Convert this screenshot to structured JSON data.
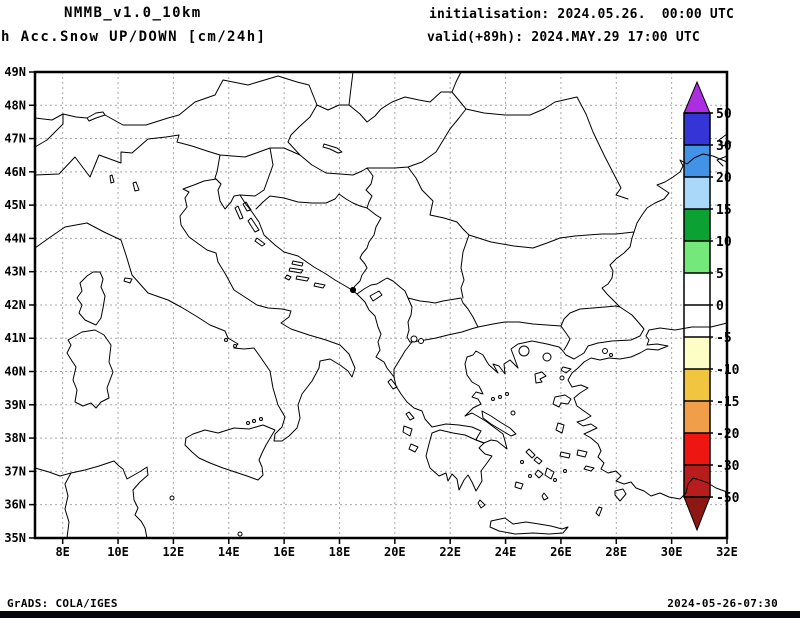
{
  "header": {
    "model_title": "NMMB_v1.0_10km",
    "product_title": "h Acc.Snow UP/DOWN [cm/24h]",
    "init_line": "initialisation: 2024.05.26.  00:00 UTC",
    "valid_line": "valid(+89h): 2024.MAY.29 17:00 UTC"
  },
  "axes": {
    "lat_labels": [
      "49N",
      "48N",
      "47N",
      "46N",
      "45N",
      "44N",
      "43N",
      "42N",
      "41N",
      "40N",
      "39N",
      "38N",
      "37N",
      "36N",
      "35N"
    ],
    "lon_labels": [
      "8E",
      "10E",
      "12E",
      "14E",
      "16E",
      "18E",
      "20E",
      "22E",
      "24E",
      "26E",
      "28E",
      "30E",
      "32E"
    ]
  },
  "colorbar": {
    "tick_labels": [
      "50",
      "30",
      "20",
      "15",
      "10",
      "5",
      "0",
      "-5",
      "-10",
      "-15",
      "-20",
      "-30",
      "-50"
    ],
    "segment_colors": [
      "#3534d6",
      "#4292e6",
      "#a9d8f8",
      "#0ca133",
      "#74e87b",
      "#ffffff",
      "#ffffff",
      "#fdfdc6",
      "#f1c53f",
      "#f19e4b",
      "#ee1611",
      "#b81d1d"
    ],
    "arrow_up_color": "#ab2fe0",
    "arrow_down_color": "#8d1712"
  },
  "footer": {
    "left": "GrADS: COLA/IGES",
    "right": "2024-05-26-07:30"
  }
}
